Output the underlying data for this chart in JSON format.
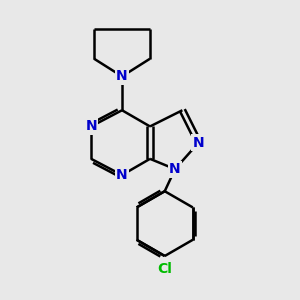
{
  "bg_color": "#e8e8e8",
  "bond_color": "#000000",
  "atom_color": "#0000cc",
  "cl_color": "#00bb00",
  "bond_width": 1.8,
  "font_size": 10,
  "cl_font_size": 10,
  "fig_size": [
    3.0,
    3.0
  ],
  "dpi": 100,
  "xlim": [
    0,
    10
  ],
  "ylim": [
    0,
    10
  ]
}
